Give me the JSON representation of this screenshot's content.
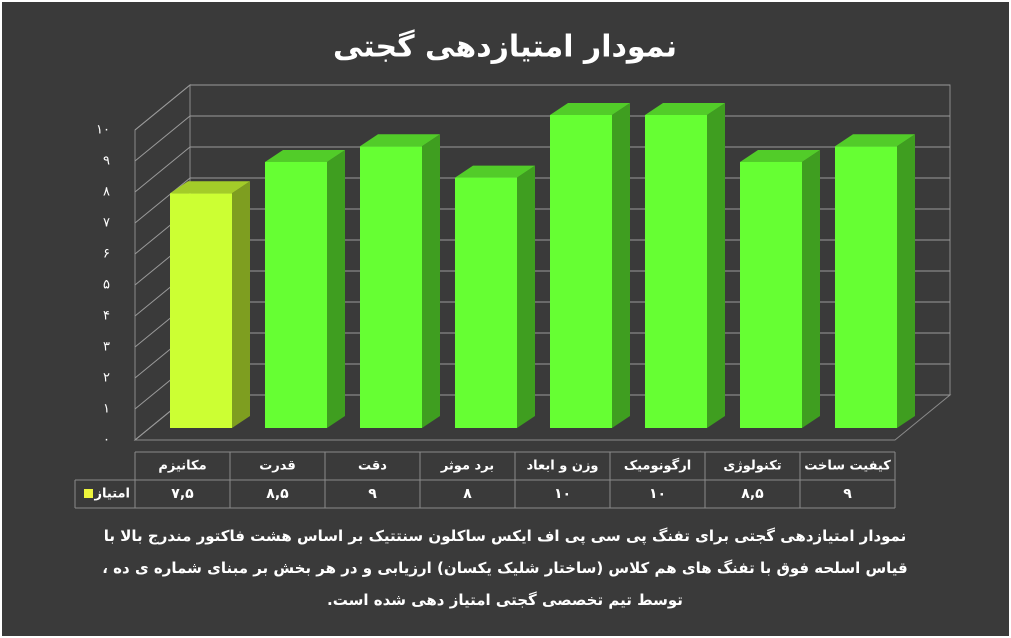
{
  "chart_data": {
    "type": "bar3d",
    "title": "نمودار امتیازدهی گجتی",
    "categories": [
      "مکانیزم",
      "قدرت",
      "دقت",
      "برد موثر",
      "وزن و ابعاد",
      "ارگونومیک",
      "تکنولوژی",
      "کیفیت ساخت"
    ],
    "series": [
      {
        "name": "امتیاز",
        "color": "#eef53c",
        "values": [
          7.5,
          8.5,
          9,
          8,
          10,
          10,
          8.5,
          9
        ],
        "value_labels": [
          "۷,۵",
          "۸,۵",
          "۹",
          "۸",
          "۱۰",
          "۱۰",
          "۸,۵",
          "۹"
        ],
        "colors": [
          "#ccff33",
          "#66ff33",
          "#66ff33",
          "#66ff33",
          "#66ff33",
          "#66ff33",
          "#66ff33",
          "#66ff33"
        ]
      }
    ],
    "ylim": [
      0,
      10
    ],
    "yticks": [
      {
        "value": 0,
        "label": "۰"
      },
      {
        "value": 1,
        "label": "۱"
      },
      {
        "value": 2,
        "label": "۲"
      },
      {
        "value": 3,
        "label": "۳"
      },
      {
        "value": 4,
        "label": "۴"
      },
      {
        "value": 5,
        "label": "۵"
      },
      {
        "value": 6,
        "label": "۶"
      },
      {
        "value": 7,
        "label": "۷"
      },
      {
        "value": 8,
        "label": "۸"
      },
      {
        "value": 9,
        "label": "۹"
      },
      {
        "value": 10,
        "label": "۱۰"
      }
    ],
    "grid": true,
    "description": "نمودار امتیازدهی گجتی برای تفنگ پی سی پی  اف ایکس ساکلون سنتتیک بر اساس هشت فاکتور مندرج بالا با قیاس اسلحه فوق با تفنگ های هم کلاس (ساختار شلیک یکسان) ارزیابی و در هر بخش بر مبنای شماره ی ده ، توسط تیم تخصصی گجتی امتیاز دهی شده است."
  }
}
